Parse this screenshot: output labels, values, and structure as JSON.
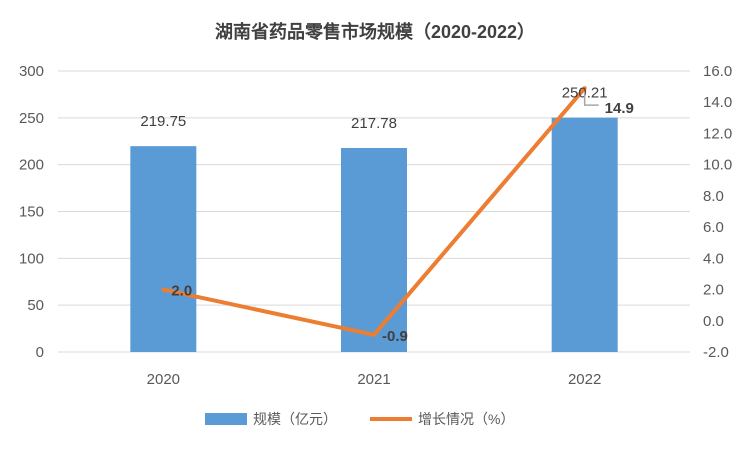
{
  "chart_data": {
    "type": "bar+line",
    "title": "湖南省药品零售市场规模（2020-2022）",
    "categories": [
      "2020",
      "2021",
      "2022"
    ],
    "series": [
      {
        "name": "规模（亿元）",
        "type": "bar",
        "axis": "left",
        "values": [
          219.75,
          217.78,
          250.21
        ],
        "labels": [
          "219.75",
          "217.78",
          "250.21"
        ],
        "color": "#5B9BD5"
      },
      {
        "name": "增长情况（%）",
        "type": "line",
        "axis": "right",
        "values": [
          2.0,
          -0.9,
          14.9
        ],
        "labels": [
          "2.0",
          "-0.9",
          "14.9"
        ],
        "color": "#ED7D31"
      }
    ],
    "left_axis": {
      "ylim": [
        0,
        300
      ],
      "ticks": [
        "0",
        "50",
        "100",
        "150",
        "200",
        "250",
        "300"
      ]
    },
    "right_axis": {
      "ylim": [
        -2,
        16
      ],
      "ticks": [
        "-2.0",
        "0.0",
        "2.0",
        "4.0",
        "6.0",
        "8.0",
        "10.0",
        "12.0",
        "14.0",
        "16.0"
      ]
    },
    "grid": true,
    "legend": "bottom"
  }
}
